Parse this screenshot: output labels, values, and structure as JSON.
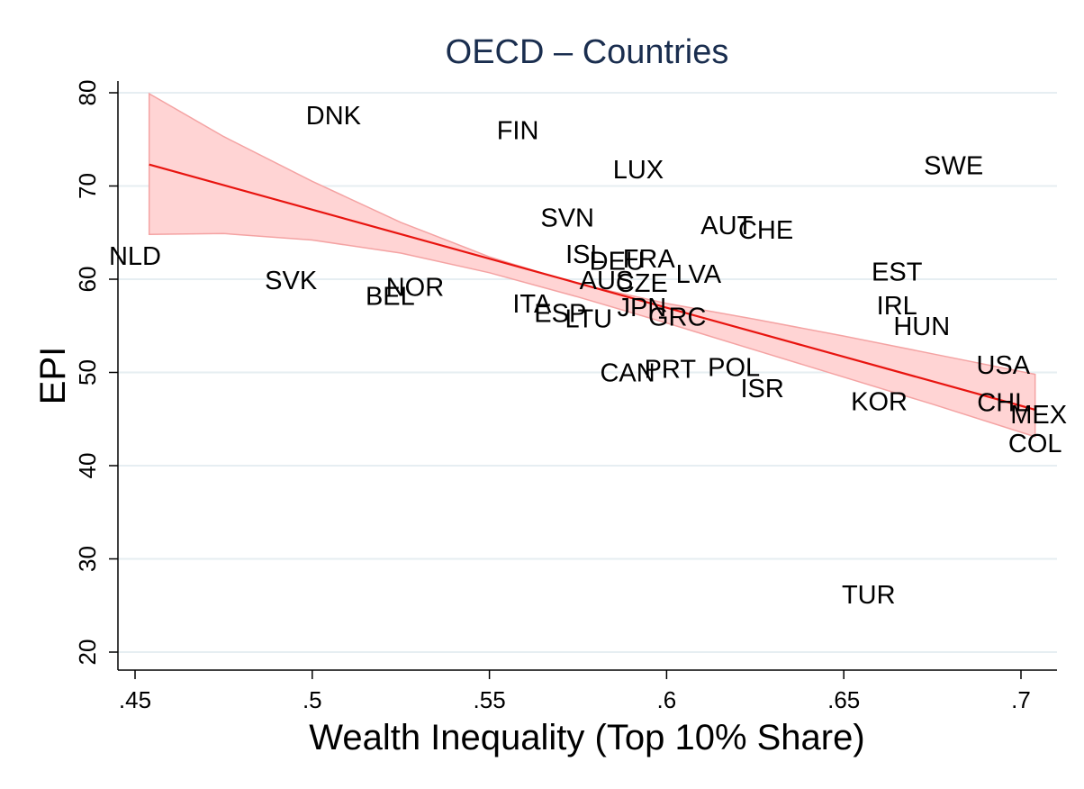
{
  "chart_data": {
    "type": "scatter",
    "title": "OECD – Countries",
    "xlabel": "Wealth Inequality (Top 10% Share)",
    "ylabel": "EPI",
    "xlim": [
      0.445,
      0.71
    ],
    "ylim": [
      18,
      82
    ],
    "xticks": [
      0.45,
      0.5,
      0.55,
      0.6,
      0.65,
      0.7
    ],
    "xtick_labels": [
      ".45",
      ".5",
      ".55",
      ".6",
      ".65",
      ".7"
    ],
    "yticks": [
      20,
      30,
      40,
      50,
      60,
      70,
      80
    ],
    "ytick_labels": [
      "20",
      "30",
      "40",
      "50",
      "60",
      "70",
      "80"
    ],
    "grid": true,
    "fit_line": {
      "x": [
        0.454,
        0.704
      ],
      "y": [
        72.3,
        46.0
      ]
    },
    "confidence_band": {
      "x": [
        0.454,
        0.475,
        0.5,
        0.525,
        0.55,
        0.575,
        0.6,
        0.625,
        0.65,
        0.675,
        0.704
      ],
      "upper": [
        79.9,
        75.3,
        70.5,
        66.1,
        62.4,
        59.5,
        57.4,
        55.7,
        53.9,
        52.0,
        49.8
      ],
      "lower": [
        64.8,
        64.9,
        64.2,
        62.8,
        60.7,
        58.1,
        55.3,
        52.4,
        49.5,
        46.6,
        43.1
      ]
    },
    "colors": {
      "fit_line": "#e8140f",
      "band_fill": "#ffd4d4",
      "band_edge": "#f4a3a3",
      "grid": "#e6eef2",
      "title": "#1a2e4f"
    },
    "points": [
      {
        "label": "DNK",
        "x": 0.506,
        "y": 77.6
      },
      {
        "label": "FIN",
        "x": 0.558,
        "y": 76.0
      },
      {
        "label": "LUX",
        "x": 0.592,
        "y": 71.8
      },
      {
        "label": "SWE",
        "x": 0.681,
        "y": 72.2
      },
      {
        "label": "SVN",
        "x": 0.572,
        "y": 66.6
      },
      {
        "label": "AUT",
        "x": 0.617,
        "y": 65.8
      },
      {
        "label": "CHE",
        "x": 0.628,
        "y": 65.3
      },
      {
        "label": "NLD",
        "x": 0.45,
        "y": 62.5
      },
      {
        "label": "ISL",
        "x": 0.577,
        "y": 62.7
      },
      {
        "label": "DEU",
        "x": 0.586,
        "y": 62.0
      },
      {
        "label": "FRA",
        "x": 0.595,
        "y": 62.2
      },
      {
        "label": "LVA",
        "x": 0.609,
        "y": 60.6
      },
      {
        "label": "EST",
        "x": 0.665,
        "y": 60.8
      },
      {
        "label": "SVK",
        "x": 0.494,
        "y": 59.9
      },
      {
        "label": "NOR",
        "x": 0.529,
        "y": 59.2
      },
      {
        "label": "BEL",
        "x": 0.522,
        "y": 58.2
      },
      {
        "label": "AUS",
        "x": 0.583,
        "y": 59.9
      },
      {
        "label": "CZE",
        "x": 0.593,
        "y": 59.6
      },
      {
        "label": "ITA",
        "x": 0.562,
        "y": 57.4
      },
      {
        "label": "IRL",
        "x": 0.665,
        "y": 57.2
      },
      {
        "label": "ESP",
        "x": 0.57,
        "y": 56.4
      },
      {
        "label": "JPN",
        "x": 0.593,
        "y": 57.0
      },
      {
        "label": "LTU",
        "x": 0.578,
        "y": 55.8
      },
      {
        "label": "GRC",
        "x": 0.603,
        "y": 56.0
      },
      {
        "label": "HUN",
        "x": 0.672,
        "y": 55.0
      },
      {
        "label": "USA",
        "x": 0.695,
        "y": 50.8
      },
      {
        "label": "CAN",
        "x": 0.589,
        "y": 50.0
      },
      {
        "label": "PRT",
        "x": 0.601,
        "y": 50.4
      },
      {
        "label": "POL",
        "x": 0.619,
        "y": 50.6
      },
      {
        "label": "ISR",
        "x": 0.627,
        "y": 48.3
      },
      {
        "label": "KOR",
        "x": 0.66,
        "y": 46.9
      },
      {
        "label": "CHL",
        "x": 0.695,
        "y": 46.8
      },
      {
        "label": "MEX",
        "x": 0.705,
        "y": 45.5
      },
      {
        "label": "COL",
        "x": 0.704,
        "y": 42.4
      },
      {
        "label": "TUR",
        "x": 0.657,
        "y": 26.2
      }
    ]
  }
}
